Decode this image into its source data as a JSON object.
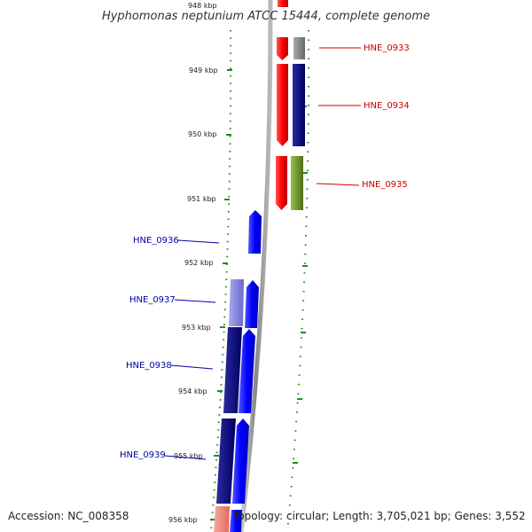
{
  "title": "Hyphomonas neptunium ATCC 15444, complete genome",
  "accession": "Accession: NC_008358",
  "topology": "Topology: circular; Length: 3,705,021 bp; Genes: 3,552",
  "ticks": [
    {
      "label": "948 kbp"
    },
    {
      "label": "949 kbp"
    },
    {
      "label": "950 kbp"
    },
    {
      "label": "951 kbp"
    },
    {
      "label": "952 kbp"
    },
    {
      "label": "953 kbp"
    },
    {
      "label": "954 kbp"
    },
    {
      "label": "955 kbp"
    },
    {
      "label": "956 kbp"
    }
  ],
  "genes": [
    {
      "label": "HNE_0933",
      "strand": "+",
      "color": "#cc0000"
    },
    {
      "label": "HNE_0934",
      "strand": "+",
      "color": "#cc0000"
    },
    {
      "label": "HNE_0935",
      "strand": "+",
      "color": "#cc0000"
    },
    {
      "label": "HNE_0936",
      "strand": "-",
      "color": "#0000aa"
    },
    {
      "label": "HNE_0937",
      "strand": "-",
      "color": "#0000aa"
    },
    {
      "label": "HNE_0938",
      "strand": "-",
      "color": "#0000aa"
    },
    {
      "label": "HNE_0939",
      "strand": "-",
      "color": "#0000aa"
    }
  ],
  "colors": {
    "forward_gene": "#ff0000",
    "reverse_gene": "#0000ff",
    "backbone": "#999999",
    "gc_dots": "#228b22",
    "cog_grey": "#777777",
    "cog_navy": "#000080",
    "cog_olive": "#6b8e23",
    "cog_lavender": "#8080e0",
    "cog_salmon": "#f08080"
  }
}
